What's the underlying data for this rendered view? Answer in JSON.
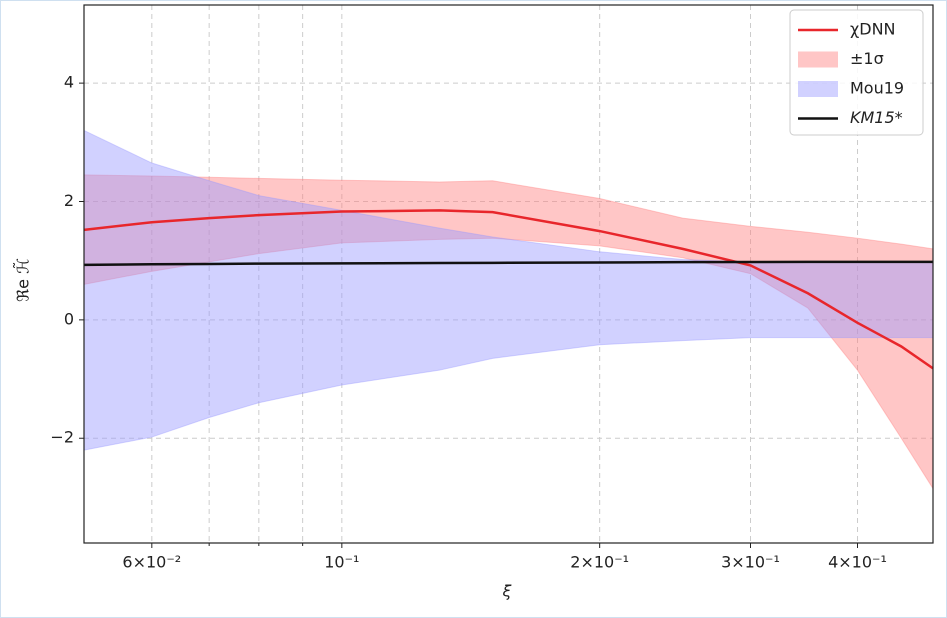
{
  "chart_data": {
    "type": "line",
    "x_label": "ξ",
    "y_label": "ℜe ℋ̃",
    "x_scale": "log",
    "grid": true,
    "legend": "upper right",
    "xlim": [
      0.05,
      0.49
    ],
    "ylim": [
      -3.77,
      5.32
    ],
    "xticks": [
      {
        "value": 0.06,
        "label": "6×10⁻²"
      },
      {
        "value": 0.1,
        "label": "10⁻¹"
      },
      {
        "value": 0.2,
        "label": "2×10⁻¹"
      },
      {
        "value": 0.3,
        "label": "3×10⁻¹"
      },
      {
        "value": 0.4,
        "label": "4×10⁻¹"
      }
    ],
    "minor_xticks": [
      0.07,
      0.08,
      0.09
    ],
    "yticks": [
      {
        "value": -2,
        "label": "−2"
      },
      0,
      2,
      4
    ],
    "x": [
      0.05,
      0.06,
      0.07,
      0.08,
      0.1,
      0.13,
      0.15,
      0.2,
      0.25,
      0.3,
      0.35,
      0.4,
      0.45,
      0.49
    ],
    "series": [
      {
        "name": "χDNN",
        "color": "#e8262b",
        "values": [
          1.52,
          1.65,
          1.72,
          1.77,
          1.83,
          1.85,
          1.82,
          1.5,
          1.2,
          0.92,
          0.45,
          -0.05,
          -0.45,
          -0.82
        ]
      },
      {
        "name": "±1σ",
        "color": "#ff8080",
        "upper": [
          2.45,
          2.43,
          2.41,
          2.39,
          2.36,
          2.33,
          2.35,
          2.05,
          1.72,
          1.58,
          1.48,
          1.38,
          1.28,
          1.2
        ],
        "lower": [
          0.6,
          0.82,
          0.98,
          1.12,
          1.3,
          1.36,
          1.38,
          1.25,
          1.05,
          0.78,
          0.2,
          -0.85,
          -2.0,
          -2.85
        ]
      },
      {
        "name": "Mou19",
        "color": "#9999ff",
        "upper": [
          3.2,
          2.65,
          2.35,
          2.1,
          1.85,
          1.55,
          1.4,
          1.15,
          1.02,
          0.98,
          0.97,
          0.97,
          0.97,
          0.97
        ],
        "lower": [
          -2.2,
          -1.98,
          -1.65,
          -1.4,
          -1.1,
          -0.85,
          -0.65,
          -0.42,
          -0.35,
          -0.3,
          -0.3,
          -0.3,
          -0.3,
          -0.3
        ]
      },
      {
        "name": "KM15*",
        "color": "#111111",
        "values": [
          0.93,
          0.94,
          0.945,
          0.95,
          0.955,
          0.96,
          0.963,
          0.97,
          0.975,
          0.978,
          0.979,
          0.98,
          0.98,
          0.98
        ]
      }
    ]
  }
}
